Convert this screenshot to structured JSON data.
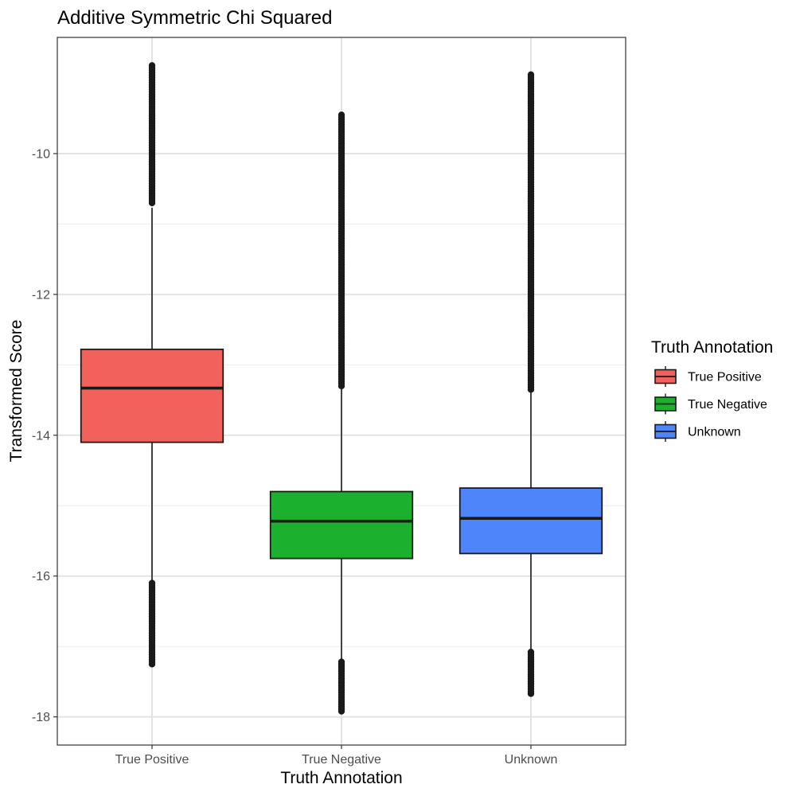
{
  "chart_data": {
    "type": "boxplot",
    "title": "Additive Symmetric Chi Squared",
    "xlabel": "Truth Annotation",
    "ylabel": "Transformed Score",
    "ylim": [
      -18.4,
      -8.35
    ],
    "yticks": [
      -10,
      -12,
      -14,
      -16,
      -18
    ],
    "ytick_labels": [
      "-10",
      "-12",
      "-14",
      "-16",
      "-18"
    ],
    "grid": true,
    "legend": {
      "title": "Truth Annotation",
      "placement": "right",
      "entries": [
        "True Positive",
        "True Negative",
        "Unknown"
      ]
    },
    "categories": [
      "True Positive",
      "True Negative",
      "Unknown"
    ],
    "series": [
      {
        "name": "True Positive",
        "color": "#F2615C",
        "whisker_low": -16.1,
        "q1": -14.1,
        "median": -13.33,
        "q3": -12.78,
        "whisker_high": -10.77,
        "outliers_high": {
          "from": -10.7,
          "to": -8.75
        },
        "outliers_low": {
          "from": -16.1,
          "to": -17.25
        }
      },
      {
        "name": "True Negative",
        "color": "#1BB12F",
        "whisker_low": -17.22,
        "q1": -15.75,
        "median": -15.22,
        "q3": -14.8,
        "whisker_high": -13.33,
        "outliers_high": {
          "from": -13.3,
          "to": -9.45
        },
        "outliers_low": {
          "from": -17.22,
          "to": -17.92
        }
      },
      {
        "name": "Unknown",
        "color": "#4F85FA",
        "whisker_low": -17.08,
        "q1": -15.68,
        "median": -15.18,
        "q3": -14.75,
        "whisker_high": -13.37,
        "outliers_high": {
          "from": -13.35,
          "to": -8.88
        },
        "outliers_low": {
          "from": -17.08,
          "to": -17.67
        }
      }
    ]
  }
}
